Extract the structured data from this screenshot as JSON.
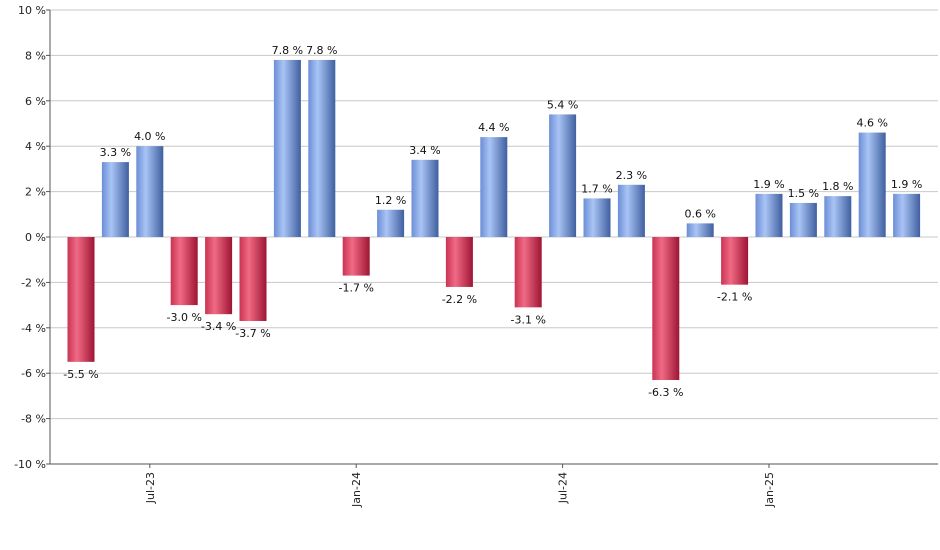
{
  "chart_data": {
    "type": "bar",
    "title": "",
    "xlabel": "",
    "ylabel": "",
    "ylim": [
      -10,
      10
    ],
    "yticks": [
      -10,
      -8,
      -6,
      -4,
      -2,
      0,
      2,
      4,
      6,
      8,
      10
    ],
    "ytick_suffix": " %",
    "grid": true,
    "legend": "none",
    "x_tick_labels": [
      {
        "label": "Jul-23",
        "index": 2
      },
      {
        "label": "Jan-24",
        "index": 8
      },
      {
        "label": "Jul-24",
        "index": 14
      },
      {
        "label": "Jan-25",
        "index": 20
      }
    ],
    "values": [
      -5.5,
      3.3,
      4.0,
      -3.0,
      -3.4,
      -3.7,
      7.8,
      7.8,
      -1.7,
      1.2,
      3.4,
      -2.2,
      4.4,
      -3.1,
      5.4,
      1.7,
      2.3,
      -6.3,
      0.6,
      -2.1,
      1.9,
      1.5,
      1.8,
      4.6,
      1.9
    ],
    "data_labels": [
      "-5.5 %",
      "3.3 %",
      "4.0 %",
      "-3.0 %",
      "-3.4 %",
      "-3.7 %",
      "7.8 %",
      "7.8 %",
      "-1.7 %",
      "1.2 %",
      "3.4 %",
      "-2.2 %",
      "4.4 %",
      "-3.1 %",
      "5.4 %",
      "1.7 %",
      "2.3 %",
      "-6.3 %",
      "0.6 %",
      "-2.1 %",
      "1.9 %",
      "1.5 %",
      "1.8 %",
      "4.6 %",
      "1.9 %"
    ],
    "colors": {
      "positive_light": "#a9c4f5",
      "positive_dark": "#3f5f9f",
      "negative_light": "#f06a85",
      "negative_dark": "#9e1533"
    }
  }
}
